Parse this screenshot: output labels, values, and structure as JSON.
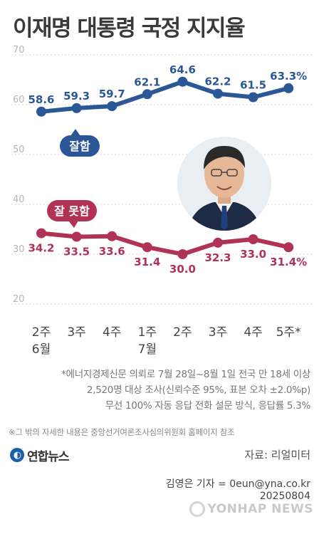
{
  "title": "이재명 대통령 국정 지지율",
  "chart_data": {
    "type": "line",
    "categories": [
      "2주\n6월",
      "3주",
      "4주",
      "1주\n7월",
      "2주",
      "3주",
      "4주",
      "5주*"
    ],
    "y_ticks": [
      20,
      30,
      40,
      50,
      60,
      70
    ],
    "ylim": [
      20,
      70
    ],
    "grid": true,
    "series": [
      {
        "name": "잘함",
        "color": "#2b5797",
        "values": [
          58.6,
          59.3,
          59.7,
          62.1,
          64.6,
          62.2,
          61.5,
          63.3
        ],
        "labels": [
          "58.6",
          "59.3",
          "59.7",
          "62.1",
          "64.6",
          "62.2",
          "61.5",
          "63.3%"
        ],
        "label_position": "above"
      },
      {
        "name": "잘 못함",
        "color": "#b03355",
        "values": [
          34.2,
          33.5,
          33.6,
          31.4,
          30.0,
          32.3,
          33.0,
          31.4
        ],
        "labels": [
          "34.2",
          "33.5",
          "33.6",
          "31.4",
          "30.0",
          "32.3",
          "33.0",
          "31.4%"
        ],
        "label_position": "below"
      }
    ]
  },
  "notes": {
    "survey_line1": "*에너지경제신문 의뢰로 7월 28일~8월 1일 전국 만 18세 이상",
    "survey_line2": "2,520명 대상 조사(신뢰수준 95%, 표본 오차 ±2.0%p)",
    "survey_line3": "무선 100% 자동 응답 전화 설문 방식, 응답률 5.3%",
    "reference": "※그 밖의 자세한 내용은 중앙선거여론조사심의위원회 홈페이지 참조"
  },
  "logo": "연합뉴스",
  "source": "자료: 리얼미터",
  "byline": "김영은 기자 = 0eun@yna.co.kr",
  "date": "20250804",
  "watermark": "YONHAP NEWS"
}
